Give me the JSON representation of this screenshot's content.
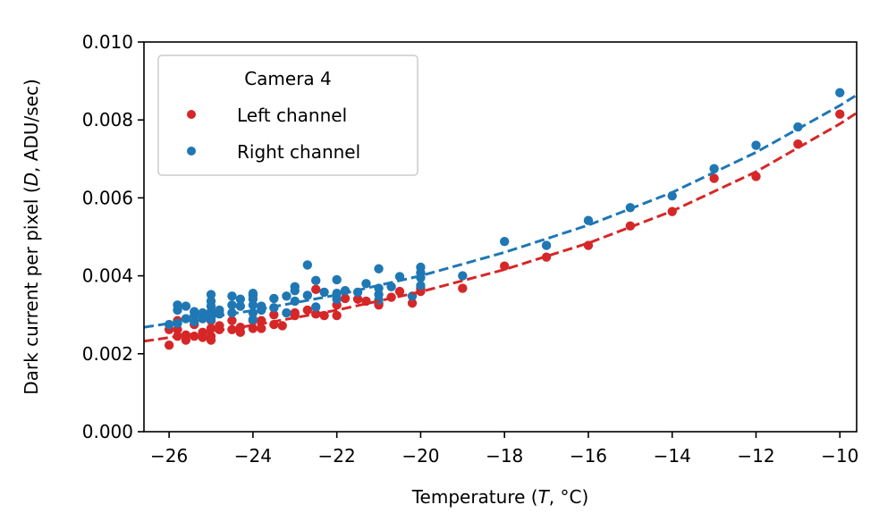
{
  "chart_data": {
    "type": "scatter",
    "xlabel_parts": [
      "Temperature (",
      "T",
      ", °C)"
    ],
    "ylabel_parts": [
      "Dark current per pixel (",
      "D",
      ", ADU/sec)"
    ],
    "xlim": [
      -26.6,
      -9.6
    ],
    "ylim": [
      0,
      0.01
    ],
    "x_ticks": [
      -26,
      -24,
      -22,
      -20,
      -18,
      -16,
      -14,
      -12,
      -10
    ],
    "x_tick_labels": [
      "−26",
      "−24",
      "−22",
      "−20",
      "−18",
      "−16",
      "−14",
      "−12",
      "−10"
    ],
    "y_ticks": [
      0,
      0.002,
      0.004,
      0.006,
      0.008,
      0.01
    ],
    "y_tick_labels": [
      "0.000",
      "0.002",
      "0.004",
      "0.006",
      "0.008",
      "0.010"
    ],
    "grid": false,
    "legend": {
      "title": "Camera 4",
      "placement": "upper-left"
    },
    "series": [
      {
        "name": "Left channel",
        "color": "#d62728",
        "points": [
          [
            -26,
            0.00222
          ],
          [
            -26,
            0.00262
          ],
          [
            -25.8,
            0.00285
          ],
          [
            -25.8,
            0.00262
          ],
          [
            -25.8,
            0.00245
          ],
          [
            -25.6,
            0.00235
          ],
          [
            -25.6,
            0.00248
          ],
          [
            -25.4,
            0.00245
          ],
          [
            -25.4,
            0.00275
          ],
          [
            -25.2,
            0.00242
          ],
          [
            -25.2,
            0.00255
          ],
          [
            -25,
            0.00235
          ],
          [
            -25,
            0.00245
          ],
          [
            -25,
            0.00265
          ],
          [
            -25,
            0.00285
          ],
          [
            -24.8,
            0.00262
          ],
          [
            -24.8,
            0.00272
          ],
          [
            -24.5,
            0.00262
          ],
          [
            -24.5,
            0.00285
          ],
          [
            -24.3,
            0.00255
          ],
          [
            -24.3,
            0.00268
          ],
          [
            -24,
            0.00265
          ],
          [
            -24,
            0.00285
          ],
          [
            -23.8,
            0.00265
          ],
          [
            -23.8,
            0.00285
          ],
          [
            -23.5,
            0.00275
          ],
          [
            -23.5,
            0.003
          ],
          [
            -23.3,
            0.00272
          ],
          [
            -23,
            0.00298
          ],
          [
            -23,
            0.00305
          ],
          [
            -22.7,
            0.00312
          ],
          [
            -22.5,
            0.00302
          ],
          [
            -22.5,
            0.00365
          ],
          [
            -22.3,
            0.00298
          ],
          [
            -22,
            0.00298
          ],
          [
            -22,
            0.00325
          ],
          [
            -21.8,
            0.00342
          ],
          [
            -21.5,
            0.0034
          ],
          [
            -21.3,
            0.00335
          ],
          [
            -21,
            0.00325
          ],
          [
            -21,
            0.0033
          ],
          [
            -20.7,
            0.00345
          ],
          [
            -20.5,
            0.0036
          ],
          [
            -20.2,
            0.0033
          ],
          [
            -20,
            0.0036
          ],
          [
            -20,
            0.00368
          ],
          [
            -19,
            0.00368
          ],
          [
            -18,
            0.00425
          ],
          [
            -17,
            0.00448
          ],
          [
            -16,
            0.00478
          ],
          [
            -15,
            0.00528
          ],
          [
            -14,
            0.00565
          ],
          [
            -13,
            0.0065
          ],
          [
            -12,
            0.00655
          ],
          [
            -11,
            0.00738
          ],
          [
            -10,
            0.00815
          ]
        ],
        "fit": [
          [
            -26.6,
            0.00232
          ],
          [
            -24,
            0.00273
          ],
          [
            -22,
            0.00312
          ],
          [
            -20,
            0.00359
          ],
          [
            -18,
            0.00416
          ],
          [
            -16,
            0.00484
          ],
          [
            -14,
            0.00566
          ],
          [
            -12,
            0.00667
          ],
          [
            -10,
            0.0079
          ],
          [
            -9.6,
            0.00818
          ]
        ]
      },
      {
        "name": "Right channel",
        "color": "#1f77b4",
        "points": [
          [
            -26,
            0.00275
          ],
          [
            -25.8,
            0.00312
          ],
          [
            -25.8,
            0.00325
          ],
          [
            -25.8,
            0.00278
          ],
          [
            -25.6,
            0.00322
          ],
          [
            -25.6,
            0.0029
          ],
          [
            -25.4,
            0.00282
          ],
          [
            -25.4,
            0.00298
          ],
          [
            -25.4,
            0.00308
          ],
          [
            -25.2,
            0.0029
          ],
          [
            -25.2,
            0.00305
          ],
          [
            -25,
            0.00352
          ],
          [
            -25,
            0.00335
          ],
          [
            -25,
            0.00322
          ],
          [
            -25,
            0.00308
          ],
          [
            -25,
            0.00298
          ],
          [
            -25,
            0.00288
          ],
          [
            -24.8,
            0.00312
          ],
          [
            -24.8,
            0.00302
          ],
          [
            -24.5,
            0.00348
          ],
          [
            -24.5,
            0.00325
          ],
          [
            -24.5,
            0.00305
          ],
          [
            -24.3,
            0.0034
          ],
          [
            -24.3,
            0.00322
          ],
          [
            -24,
            0.00355
          ],
          [
            -24,
            0.0035
          ],
          [
            -24,
            0.0034
          ],
          [
            -24,
            0.00325
          ],
          [
            -24,
            0.00305
          ],
          [
            -24,
            0.00288
          ],
          [
            -23.8,
            0.00322
          ],
          [
            -23.8,
            0.00312
          ],
          [
            -23.5,
            0.00342
          ],
          [
            -23.5,
            0.00318
          ],
          [
            -23.2,
            0.00348
          ],
          [
            -23.2,
            0.00305
          ],
          [
            -23,
            0.00372
          ],
          [
            -23,
            0.00362
          ],
          [
            -23,
            0.00335
          ],
          [
            -22.7,
            0.00428
          ],
          [
            -22.7,
            0.0035
          ],
          [
            -22.5,
            0.00388
          ],
          [
            -22.5,
            0.0032
          ],
          [
            -22.3,
            0.00358
          ],
          [
            -22,
            0.0039
          ],
          [
            -22,
            0.00355
          ],
          [
            -22,
            0.0034
          ],
          [
            -21.8,
            0.00362
          ],
          [
            -21.5,
            0.00358
          ],
          [
            -21.3,
            0.0038
          ],
          [
            -21,
            0.00418
          ],
          [
            -21,
            0.00368
          ],
          [
            -21,
            0.00352
          ],
          [
            -21,
            0.00338
          ],
          [
            -20.7,
            0.00372
          ],
          [
            -20.5,
            0.00398
          ],
          [
            -20.2,
            0.00348
          ],
          [
            -20,
            0.00422
          ],
          [
            -20,
            0.00408
          ],
          [
            -20,
            0.00395
          ],
          [
            -20,
            0.00375
          ],
          [
            -19,
            0.004
          ],
          [
            -18,
            0.00488
          ],
          [
            -17,
            0.00478
          ],
          [
            -16,
            0.00542
          ],
          [
            -15,
            0.00575
          ],
          [
            -14,
            0.00605
          ],
          [
            -13,
            0.00675
          ],
          [
            -12,
            0.00735
          ],
          [
            -11,
            0.00782
          ],
          [
            -10,
            0.0087
          ]
        ],
        "fit": [
          [
            -26.6,
            0.00268
          ],
          [
            -24,
            0.00311
          ],
          [
            -22,
            0.00351
          ],
          [
            -20,
            0.004
          ],
          [
            -18,
            0.0046
          ],
          [
            -16,
            0.0053
          ],
          [
            -14,
            0.00614
          ],
          [
            -12,
            0.00717
          ],
          [
            -10,
            0.00837
          ],
          [
            -9.6,
            0.00864
          ]
        ]
      }
    ]
  }
}
